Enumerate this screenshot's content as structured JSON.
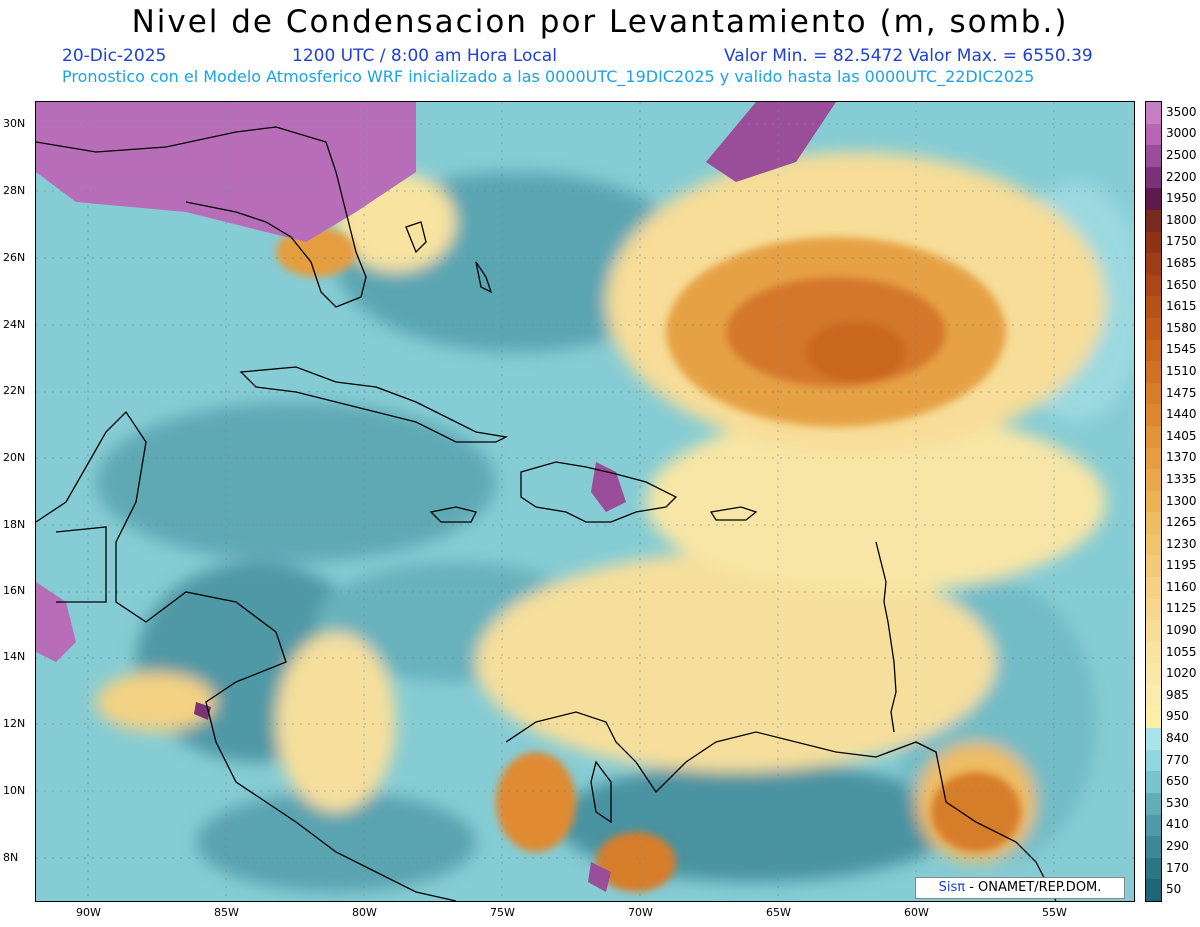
{
  "title": "Nivel de Condensacion por Levantamiento (m, somb.)",
  "date": "20-Dic-2025",
  "time": "1200 UTC / 8:00 am Hora Local",
  "minmax": "Valor Min. = 82.5472  Valor Max. = 6550.39",
  "model_line": "Pronostico con el Modelo Atmosferico WRF inicializado a las 0000UTC_19DIC2025 y valido hasta las  0000UTC_22DIC2025",
  "credit_brand": "Sisπ",
  "credit_rest": "- ONAMET/REP.DOM.",
  "lat_labels": [
    "30N",
    "28N",
    "26N",
    "24N",
    "22N",
    "20N",
    "18N",
    "16N",
    "14N",
    "12N",
    "10N",
    "8N"
  ],
  "lon_labels": [
    "90W",
    "85W",
    "80W",
    "75W",
    "70W",
    "65W",
    "60W",
    "55W"
  ],
  "colorbar": {
    "labels": [
      "3500",
      "3000",
      "2500",
      "2200",
      "1950",
      "1800",
      "1750",
      "1685",
      "1650",
      "1615",
      "1580",
      "1545",
      "1510",
      "1475",
      "1440",
      "1405",
      "1370",
      "1335",
      "1300",
      "1265",
      "1230",
      "1195",
      "1160",
      "1125",
      "1090",
      "1055",
      "1020",
      "985",
      "950",
      "840",
      "770",
      "650",
      "530",
      "410",
      "290",
      "170",
      "50"
    ],
    "colors": [
      "#c77fc4",
      "#b865b4",
      "#9a4d98",
      "#7b3378",
      "#5e1a4a",
      "#7a2a1c",
      "#8d3417",
      "#9c3d16",
      "#aa4716",
      "#b65218",
      "#c05c1b",
      "#c9671f",
      "#d07224",
      "#d67d2a",
      "#db8831",
      "#e09338",
      "#e49e41",
      "#e8a84b",
      "#ebb256",
      "#eebc62",
      "#f0c46d",
      "#f2cb78",
      "#f3d283",
      "#f5d88d",
      "#f6de97",
      "#f8e3a0",
      "#f9e8a8",
      "#fbecae",
      "#fcf0a8",
      "#a8e4ea",
      "#8fd6de",
      "#78c3cc",
      "#62adb8",
      "#4f9aa7",
      "#3d8796",
      "#2c7585",
      "#1e6676"
    ]
  }
}
